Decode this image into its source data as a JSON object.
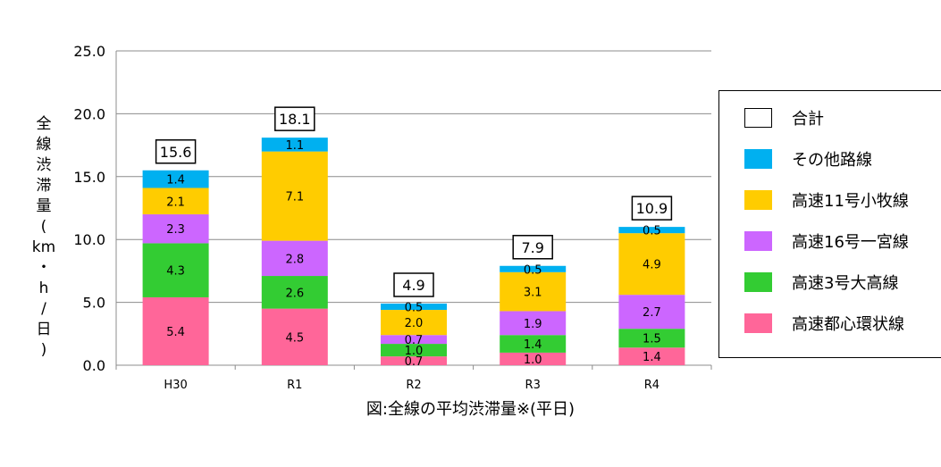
{
  "chart_data": {
    "type": "bar",
    "stacked": true,
    "caption": "図:全線の平均渋滞量※(平日)",
    "ylabel": "全線渋滞量(km・h/日)",
    "ylabel_chars": [
      "全",
      "線",
      "渋",
      "滞",
      "量",
      "(",
      "km",
      "・",
      "h",
      "/",
      "日",
      ")"
    ],
    "ylim": [
      0,
      25
    ],
    "yticks": [
      "0.0",
      "5.0",
      "10.0",
      "15.0",
      "20.0",
      "25.0"
    ],
    "ytick_values": [
      0,
      5,
      10,
      15,
      20,
      25
    ],
    "grid": true,
    "legend_position": "right",
    "categories": [
      "H30",
      "R1",
      "R2",
      "R3",
      "R4"
    ],
    "totals": [
      15.6,
      18.1,
      4.9,
      7.9,
      10.9
    ],
    "total_labels": [
      "15.6",
      "18.1",
      "4.9",
      "7.9",
      "10.9"
    ],
    "total_legend_label": "合計",
    "series": [
      {
        "name": "高速都心環状線",
        "color": "#ff6699",
        "values": [
          5.4,
          4.5,
          0.7,
          1.0,
          1.4
        ],
        "labels": [
          "5.4",
          "4.5",
          "0.7",
          "1.0",
          "1.4"
        ]
      },
      {
        "name": "高速3号大高線",
        "color": "#33cc33",
        "values": [
          4.3,
          2.6,
          1.0,
          1.4,
          1.5
        ],
        "labels": [
          "4.3",
          "2.6",
          "1.0",
          "1.4",
          "1.5"
        ]
      },
      {
        "name": "高速16号一宮線",
        "color": "#cc66ff",
        "values": [
          2.3,
          2.8,
          0.7,
          1.9,
          2.7
        ],
        "labels": [
          "2.3",
          "2.8",
          "0.7",
          "1.9",
          "2.7"
        ]
      },
      {
        "name": "高速11号小牧線",
        "color": "#ffcc00",
        "values": [
          2.1,
          7.1,
          2.0,
          3.1,
          4.9
        ],
        "labels": [
          "2.1",
          "7.1",
          "2.0",
          "3.1",
          "4.9"
        ]
      },
      {
        "name": "その他路線",
        "color": "#00b0f0",
        "values": [
          1.4,
          1.1,
          0.5,
          0.5,
          0.5
        ],
        "labels": [
          "1.4",
          "1.1",
          "0.5",
          "0.5",
          "0.5"
        ]
      }
    ],
    "legend_order": [
      "その他路線",
      "高速11号小牧線",
      "高速16号一宮線",
      "高速3号大高線",
      "高速都心環状線"
    ]
  }
}
